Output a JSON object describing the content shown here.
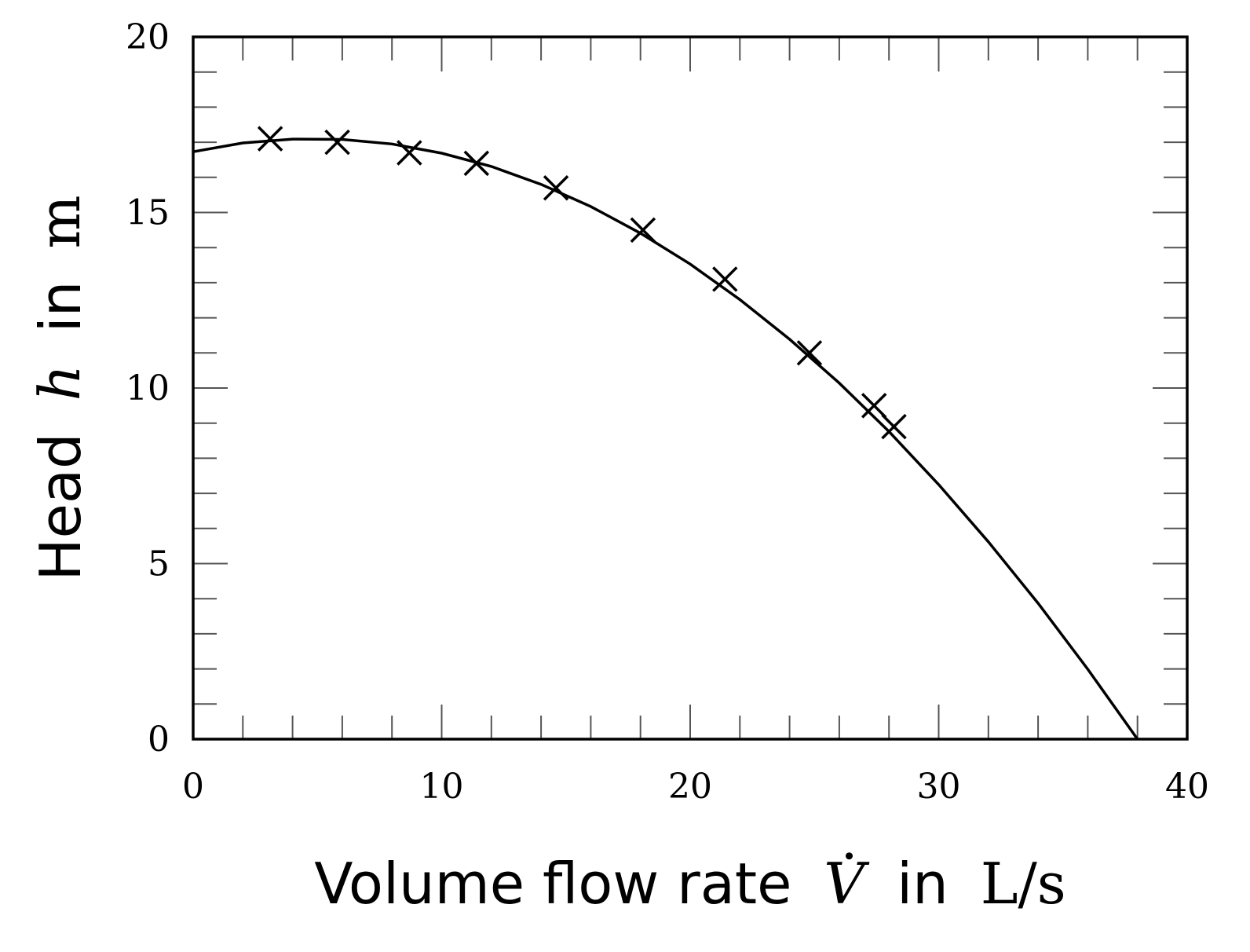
{
  "chart_data": {
    "type": "line",
    "title": "",
    "xlabel": {
      "text": "Volume flow rate",
      "symbol": "V",
      "symbol_accent": "dot",
      "connector": "in",
      "unit": "L/s"
    },
    "ylabel": {
      "text": "Head",
      "symbol": "h",
      "connector": "in",
      "unit": "m"
    },
    "xlim": [
      0,
      40
    ],
    "ylim": [
      0,
      20
    ],
    "xticks": [
      0,
      10,
      20,
      30,
      40
    ],
    "yticks": [
      0,
      5,
      10,
      15,
      20
    ],
    "minor_tick_step_x": 2,
    "minor_tick_step_y": 1,
    "grid": false,
    "series": [
      {
        "kind": "scatter",
        "marker": "x",
        "color": "#000000",
        "x": [
          3.1,
          5.8,
          8.7,
          11.4,
          14.6,
          18.1,
          21.4,
          24.8,
          27.4,
          28.2
        ],
        "y": [
          17.1,
          17.0,
          16.7,
          16.4,
          15.7,
          14.5,
          13.1,
          11.0,
          9.5,
          8.9
        ]
      },
      {
        "kind": "line",
        "color": "#000000",
        "x": [
          0,
          2,
          4,
          6,
          8,
          10,
          12,
          14,
          16,
          18,
          20,
          22,
          24,
          26,
          28,
          30,
          32,
          34,
          36,
          38,
          38.5
        ],
        "y": [
          16.73,
          16.98,
          17.09,
          17.08,
          16.95,
          16.69,
          16.31,
          15.8,
          15.17,
          14.41,
          13.53,
          12.52,
          11.39,
          10.14,
          8.76,
          7.25,
          5.62,
          3.87,
          1.99,
          0.0,
          -0.5
        ]
      }
    ]
  }
}
